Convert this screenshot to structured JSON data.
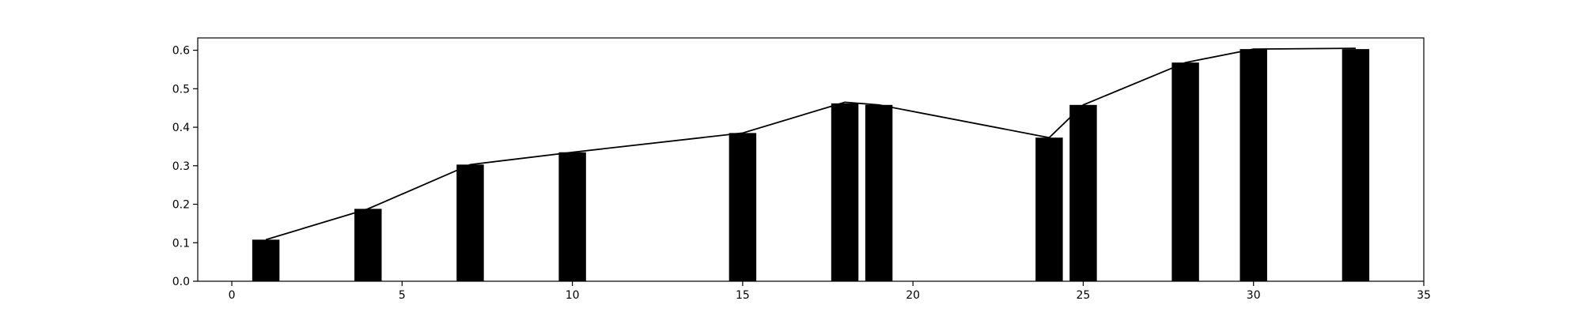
{
  "chart_data": {
    "type": "bar",
    "title": "",
    "xlabel": "",
    "ylabel": "",
    "xlim": [
      -1,
      35
    ],
    "ylim": [
      0,
      0.632
    ],
    "xticks": [
      0,
      5,
      10,
      15,
      20,
      25,
      30,
      35
    ],
    "yticks": [
      0.0,
      0.1,
      0.2,
      0.3,
      0.4,
      0.5,
      0.6
    ],
    "xtick_labels": [
      "0",
      "5",
      "10",
      "15",
      "20",
      "25",
      "30",
      "35"
    ],
    "ytick_labels": [
      "0.0",
      "0.1",
      "0.2",
      "0.3",
      "0.4",
      "0.5",
      "0.6"
    ],
    "grid": false,
    "bar_width": 0.8,
    "bar_color": "#000000",
    "line_color": "#000000",
    "bars": {
      "x": [
        1,
        4,
        7,
        10,
        15,
        18,
        19,
        24,
        25,
        28,
        30,
        33
      ],
      "values": [
        0.108,
        0.188,
        0.303,
        0.335,
        0.385,
        0.462,
        0.458,
        0.373,
        0.458,
        0.568,
        0.603,
        0.603
      ]
    },
    "line": {
      "x": [
        1,
        4,
        7,
        10,
        15,
        18,
        19,
        24,
        25,
        28,
        30,
        33
      ],
      "values": [
        0.108,
        0.188,
        0.303,
        0.335,
        0.385,
        0.465,
        0.458,
        0.373,
        0.458,
        0.568,
        0.603,
        0.605
      ]
    }
  }
}
